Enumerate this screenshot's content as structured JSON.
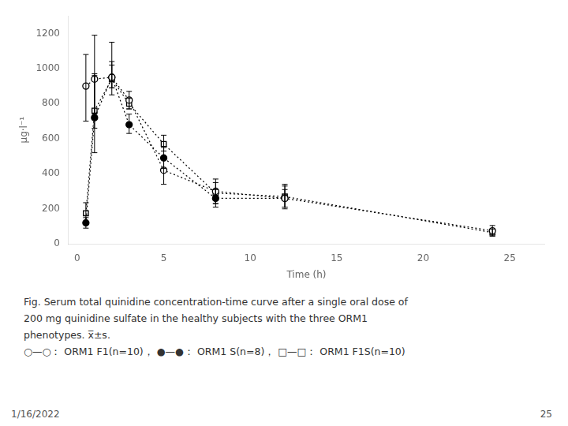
{
  "chart_data": {
    "type": "line",
    "xlabel": "Time (h)",
    "ylabel": "μg·l⁻¹",
    "xlim": [
      -0.5,
      27
    ],
    "ylim": [
      0,
      1300
    ],
    "xticks": [
      0,
      5,
      10,
      15,
      20,
      25
    ],
    "yticks": [
      0,
      200,
      400,
      600,
      800,
      1000,
      1200
    ],
    "grid": false,
    "legend": false,
    "line_style": "dotted",
    "series": [
      {
        "name": "ORM1 F1(n=10)",
        "color": "#000000",
        "marker": "circle-open",
        "x": [
          0.5,
          1.0,
          2.0,
          3.0,
          5.0,
          8.0,
          12.0,
          24.0
        ],
        "values": [
          900,
          940,
          950,
          820,
          420,
          300,
          260,
          75
        ],
        "error_lo": [
          200,
          200,
          100,
          50,
          80,
          70,
          60,
          30
        ],
        "error_hi": [
          180,
          250,
          200,
          50,
          80,
          70,
          70,
          30
        ]
      },
      {
        "name": "ORM1 S(n=8)",
        "color": "#000000",
        "marker": "circle-filled",
        "x": [
          0.5,
          1.0,
          2.0,
          3.0,
          5.0,
          8.0,
          12.0
        ],
        "values": [
          120,
          720,
          950,
          680,
          490,
          260,
          260
        ],
        "error_lo": [
          30,
          200,
          60,
          50,
          60,
          50,
          50
        ],
        "error_hi": [
          30,
          250,
          70,
          60,
          60,
          50,
          50
        ]
      },
      {
        "name": "ORM1 F1S(n=10)",
        "color": "#000000",
        "marker": "square-open",
        "x": [
          0.5,
          1.0,
          2.0,
          3.0,
          5.0,
          8.0,
          12.0,
          24.0
        ],
        "values": [
          175,
          760,
          940,
          800,
          570,
          290,
          270,
          65
        ],
        "error_lo": [
          60,
          100,
          50,
          30,
          40,
          60,
          60,
          20
        ],
        "error_hi": [
          60,
          200,
          100,
          30,
          50,
          60,
          70,
          20
        ]
      }
    ],
    "annotations": [
      "Fig.  Serum total quinidine concentration-time curve after a single oral dose of",
      "200 mg quinidine sulfate in the healthy subjects with the three ORM1",
      "phenotypes.   x̅±s.",
      "○—○： ORM1 F1(n=10)，   ●—●： ORM1 S(n=8)，   □—□： ORM1 F1S(n=10)"
    ],
    "footer": [
      "1/16/2022",
      "25"
    ]
  }
}
